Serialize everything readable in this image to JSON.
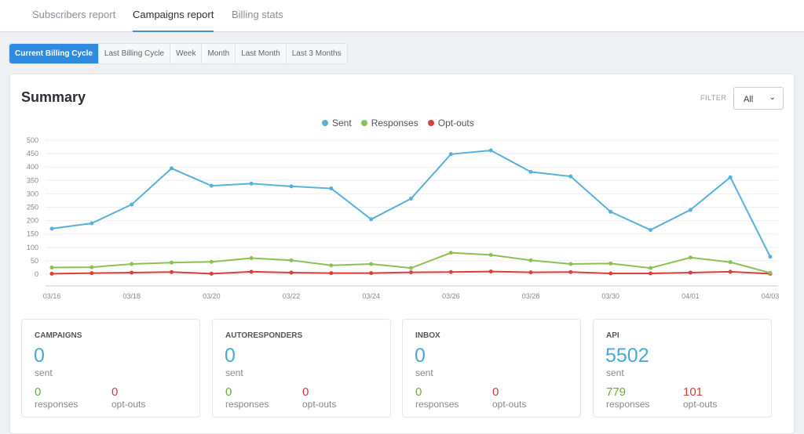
{
  "tabs": [
    {
      "label": "Subscribers report"
    },
    {
      "label": "Campaigns report",
      "active": true
    },
    {
      "label": "Billing stats"
    }
  ],
  "ranges": [
    {
      "label": "Current Billing Cycle",
      "active": true
    },
    {
      "label": "Last Billing Cycle"
    },
    {
      "label": "Week"
    },
    {
      "label": "Month"
    },
    {
      "label": "Last Month"
    },
    {
      "label": "Last 3 Months"
    }
  ],
  "summary": {
    "title": "Summary",
    "filter_label": "FILTER",
    "filter_value": "All"
  },
  "chart_data": {
    "type": "line",
    "x": [
      "03/16",
      "03/17",
      "03/18",
      "03/19",
      "03/20",
      "03/21",
      "03/22",
      "03/23",
      "03/24",
      "03/25",
      "03/26",
      "03/27",
      "03/28",
      "03/29",
      "03/30",
      "03/31",
      "04/01",
      "04/02",
      "04/03"
    ],
    "xticks": [
      "03/16",
      "03/18",
      "03/20",
      "03/22",
      "03/24",
      "03/26",
      "03/28",
      "03/30",
      "04/01",
      "04/03"
    ],
    "yticks": [
      "0",
      "50",
      "100",
      "150",
      "200",
      "250",
      "300",
      "350",
      "400",
      "450",
      "500"
    ],
    "ylim": [
      0,
      500
    ],
    "grid": true,
    "legend": "top-center",
    "series": [
      {
        "name": "Sent",
        "color": "#56b0dc",
        "values": [
          170,
          190,
          260,
          395,
          330,
          338,
          328,
          320,
          205,
          282,
          448,
          462,
          382,
          365,
          233,
          165,
          240,
          362,
          65
        ]
      },
      {
        "name": "Responses",
        "color": "#8cc152",
        "values": [
          25,
          26,
          38,
          43,
          46,
          60,
          52,
          33,
          38,
          23,
          80,
          72,
          52,
          38,
          40,
          23,
          62,
          45,
          5
        ]
      },
      {
        "name": "Opt-outs",
        "color": "#d9403a",
        "values": [
          2,
          4,
          6,
          8,
          2,
          9,
          6,
          4,
          4,
          7,
          8,
          10,
          7,
          8,
          3,
          3,
          6,
          9,
          2
        ]
      }
    ]
  },
  "cards": [
    {
      "title": "CAMPAIGNS",
      "sent": "0",
      "sent_label": "sent",
      "responses": "0",
      "responses_label": "responses",
      "optouts": "0",
      "optouts_label": "opt-outs"
    },
    {
      "title": "AUTORESPONDERS",
      "sent": "0",
      "sent_label": "sent",
      "responses": "0",
      "responses_label": "responses",
      "optouts": "0",
      "optouts_label": "opt-outs"
    },
    {
      "title": "INBOX",
      "sent": "0",
      "sent_label": "sent",
      "responses": "0",
      "responses_label": "responses",
      "optouts": "0",
      "optouts_label": "opt-outs"
    },
    {
      "title": "API",
      "sent": "5502",
      "sent_label": "sent",
      "responses": "779",
      "responses_label": "responses",
      "optouts": "101",
      "optouts_label": "opt-outs"
    }
  ]
}
